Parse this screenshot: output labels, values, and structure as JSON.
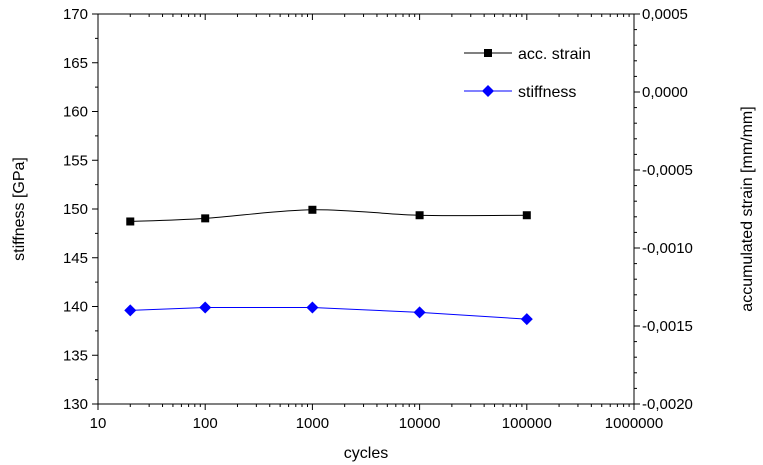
{
  "chart_data": {
    "type": "line",
    "title": "",
    "xlabel": "cycles",
    "ylabel": "stiffness [GPa]",
    "y2label": "accumulated strain [mm/mm]",
    "xscale": "log",
    "xlim": [
      10,
      1000000
    ],
    "ylim": [
      130,
      170
    ],
    "y2lim": [
      -0.002,
      0.0005
    ],
    "grid": false,
    "legend_position": "top-right",
    "x_tick_labels": [
      "10",
      "100",
      "1000",
      "10000",
      "100000",
      "1000000"
    ],
    "y_tick_labels": [
      "130",
      "135",
      "140",
      "145",
      "150",
      "155",
      "160",
      "165",
      "170"
    ],
    "y2_tick_labels": [
      "0,0005",
      "0,0000",
      "-0,0005",
      "-0,0010",
      "-0,0015",
      "-0,0020"
    ],
    "series": [
      {
        "name": "acc. strain",
        "axis": "right",
        "color": "#000000",
        "marker": "square",
        "smooth": true,
        "x": [
          20,
          100,
          1000,
          10000,
          100000
        ],
        "values": [
          -0.00083,
          -0.00081,
          -0.000755,
          -0.00079,
          -0.00079
        ]
      },
      {
        "name": "stiffness",
        "axis": "left",
        "color": "#0000ff",
        "marker": "diamond",
        "smooth": false,
        "x": [
          20,
          100,
          1000,
          10000,
          100000
        ],
        "values": [
          139.6,
          139.9,
          139.9,
          139.4,
          138.7
        ]
      }
    ]
  }
}
